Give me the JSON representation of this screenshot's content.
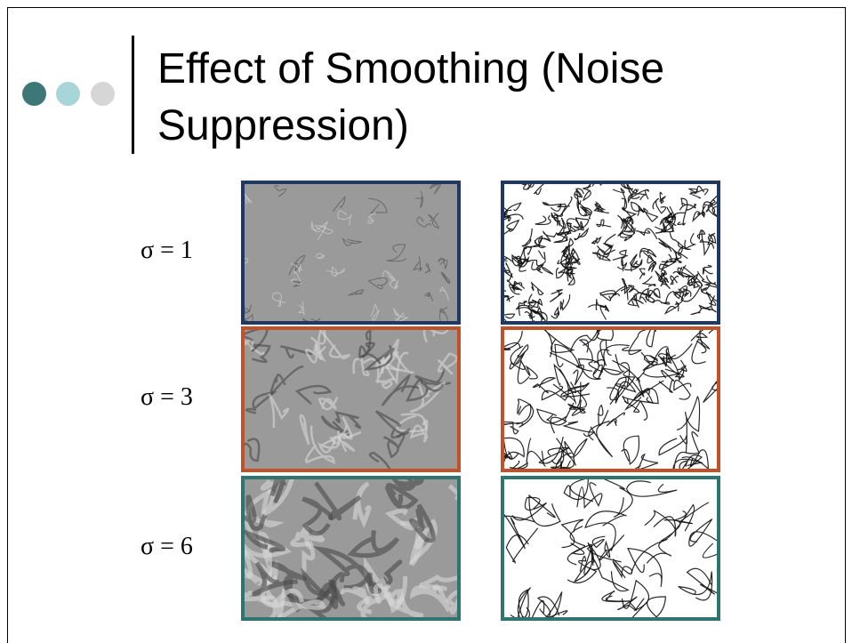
{
  "header": {
    "title": "Effect of Smoothing (Noise Suppression)"
  },
  "rows": [
    {
      "label": "σ = 1"
    },
    {
      "label": "σ = 3"
    },
    {
      "label": "σ = 6"
    }
  ]
}
